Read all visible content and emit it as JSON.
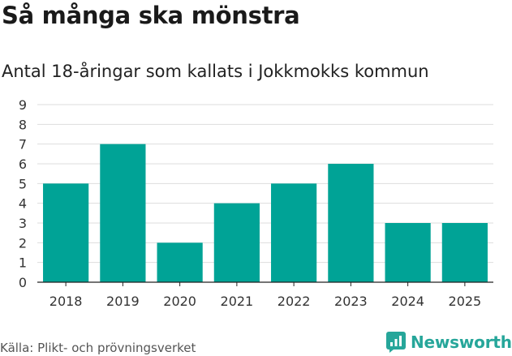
{
  "chart_data": {
    "type": "bar",
    "title": "Så många ska mönstra",
    "subtitle": "Antal 18-åringar som kallats i Jokkmokks kommun",
    "categories": [
      "2018",
      "2019",
      "2020",
      "2021",
      "2022",
      "2023",
      "2024",
      "2025"
    ],
    "values": [
      5,
      7,
      2,
      4,
      5,
      6,
      3,
      3
    ],
    "ylim": [
      0,
      9
    ],
    "yticks": [
      0,
      1,
      2,
      3,
      4,
      5,
      6,
      7,
      8,
      9
    ],
    "grid": true,
    "legend": "none",
    "bar_color": "#00a396",
    "source": "Källa: Plikt- och prövningsverket",
    "brand": "Newsworthy",
    "brand_color": "#26a69a"
  }
}
